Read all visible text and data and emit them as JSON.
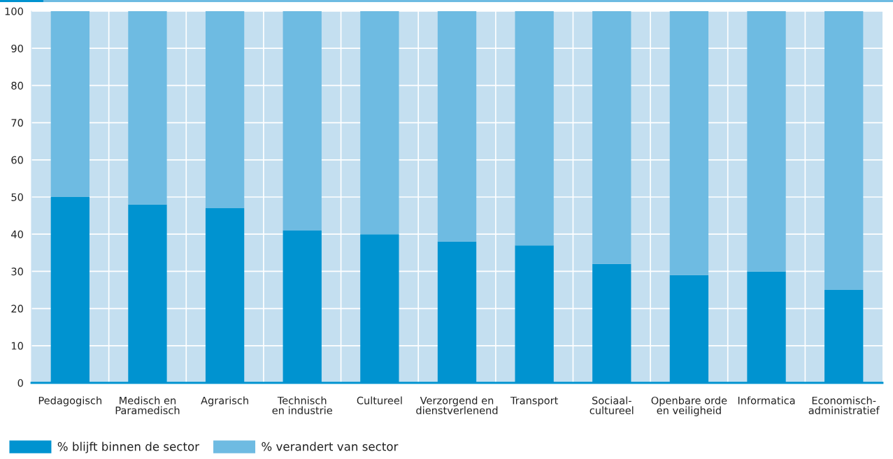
{
  "chart_data": {
    "type": "bar",
    "stacked": true,
    "categories": [
      "Pedagogisch",
      "Medisch en\nParamedisch",
      "Agrarisch",
      "Technisch\nen industrie",
      "Cultureel",
      "Verzorgend en\ndienstverlenend",
      "Transport",
      "Sociaal-\ncultureel",
      "Openbare orde\nen veiligheid",
      "Informatica",
      "Economisch-\nadministratief"
    ],
    "series": [
      {
        "name": "% blijft binnen de sector",
        "color": "#0093d0",
        "values": [
          50,
          48,
          47,
          41,
          40,
          38,
          37,
          32,
          29,
          30,
          25
        ]
      },
      {
        "name": "% verandert van sector",
        "color": "#6ebbe2",
        "values": [
          50,
          52,
          53,
          59,
          60,
          62,
          63,
          68,
          71,
          70,
          75
        ]
      }
    ],
    "ylim": [
      0,
      100
    ],
    "yticks": [
      0,
      10,
      20,
      30,
      40,
      50,
      60,
      70,
      80,
      90,
      100
    ],
    "grid": true,
    "legend": "bottom left"
  }
}
